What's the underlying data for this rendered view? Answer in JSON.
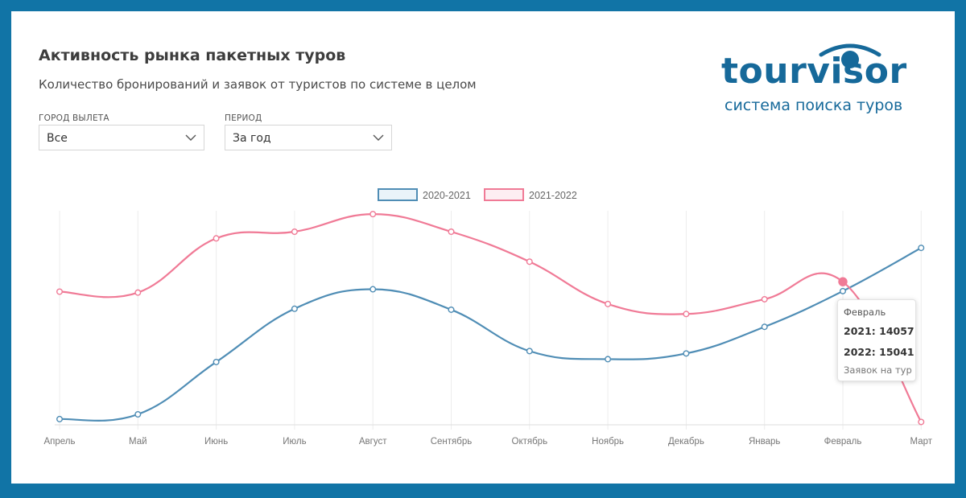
{
  "header": {
    "title": "Активность рынка пакетных туров",
    "subtitle": "Количество бронирований и заявок от туристов по системе в целом"
  },
  "filters": {
    "city": {
      "label": "ГОРОД ВЫЛЕТА",
      "value": "Все"
    },
    "period": {
      "label": "ПЕРИОД",
      "value": "За год"
    }
  },
  "logo": {
    "word": "tourvisor",
    "tagline": "система поиска туров"
  },
  "tooltip": {
    "title": "Февраль",
    "line1": "2021: 14057",
    "line2": "2022: 15041",
    "footer": "Заявок на тур"
  },
  "colors": {
    "series1": "#4f8db5",
    "series2": "#f07a96",
    "background": "#1174a6",
    "logo": "#16699a"
  },
  "chart_data": {
    "type": "line",
    "categories": [
      "Апрель",
      "Май",
      "Июнь",
      "Июль",
      "Август",
      "Сентябрь",
      "Октябрь",
      "Ноябрь",
      "Декабрь",
      "Январь",
      "Февраль",
      "Март"
    ],
    "series": [
      {
        "name": "2020-2021",
        "values": [
          600,
          1100,
          6600,
          12200,
          14250,
          12100,
          7750,
          6900,
          7500,
          10300,
          14057,
          18600
        ]
      },
      {
        "name": "2021-2022",
        "values": [
          14000,
          13900,
          19600,
          20300,
          22150,
          20300,
          17150,
          12700,
          11650,
          13200,
          15041,
          300
        ]
      }
    ],
    "ylim": [
      0,
      22500
    ],
    "legend": "top-center",
    "grid": "vertical",
    "highlight": {
      "series": 1,
      "index": 10
    }
  }
}
